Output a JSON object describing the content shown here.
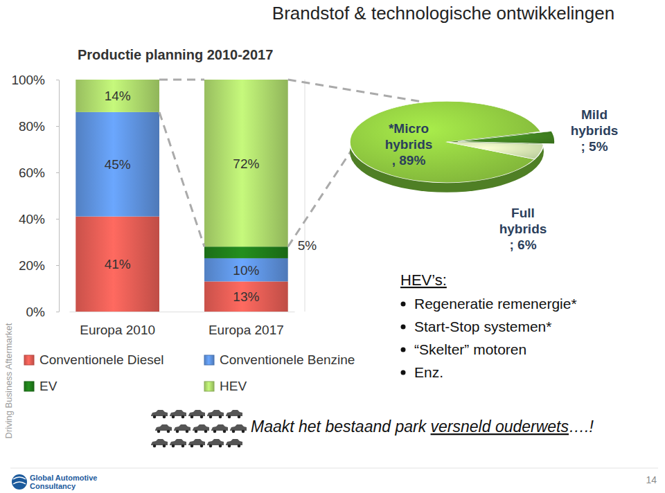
{
  "chart_data": [
    {
      "type": "bar",
      "title": "Productie planning 2010-2017",
      "categories": [
        "Europa 2010",
        "Europa 2017"
      ],
      "series": [
        {
          "name": "Conventionele Diesel",
          "color": "#e05a52",
          "values": [
            41,
            13
          ],
          "value_labels": [
            "41%",
            "13%"
          ]
        },
        {
          "name": "Conventionele Benzine",
          "color": "#5b8ed8",
          "values": [
            45,
            10
          ],
          "value_labels": [
            "45%",
            "10%"
          ]
        },
        {
          "name": "EV",
          "color": "#1f7a1a",
          "values": [
            0,
            5
          ],
          "value_labels": [
            null,
            "5%"
          ]
        },
        {
          "name": "HEV",
          "color": "#a9d46a",
          "values": [
            14,
            72
          ],
          "value_labels": [
            "14%",
            "72%"
          ]
        }
      ],
      "stacked": true,
      "data_labels": true,
      "grid": false,
      "legend": "bottom",
      "ylim": [
        0,
        100
      ],
      "yticks": [
        {
          "value": 0,
          "label": "0%"
        },
        {
          "value": 20,
          "label": "20%"
        },
        {
          "value": 40,
          "label": "40%"
        },
        {
          "value": 60,
          "label": "60%"
        },
        {
          "value": 80,
          "label": "80%"
        },
        {
          "value": 100,
          "label": "100%"
        }
      ]
    },
    {
      "type": "pie",
      "categories": [
        "*Micro hybrids",
        "Mild hybrids",
        "Full hybrids"
      ],
      "values": [
        89,
        5,
        6
      ],
      "value_labels": [
        ", 89%",
        "; 5%",
        "; 6%"
      ],
      "colors": [
        "#8dc63f",
        "#3f7f1f",
        "#d2e8b0"
      ],
      "data_labels": true
    }
  ],
  "slide": {
    "title": "Brandstof & technologische ontwikkelingen",
    "side_text": "Driving Business Aftermarket",
    "hev_heading": "HEV’s:",
    "hev_items": [
      "Regeneratie remenergie*",
      "Start-Stop systemen*",
      "“Skelter” motoren",
      "Enz."
    ],
    "footer": [
      "Maakt het bestaand park ",
      "versneld ouderwets",
      "….!"
    ],
    "logo": [
      "Global Automotive",
      "Consultancy"
    ],
    "page": "14"
  }
}
